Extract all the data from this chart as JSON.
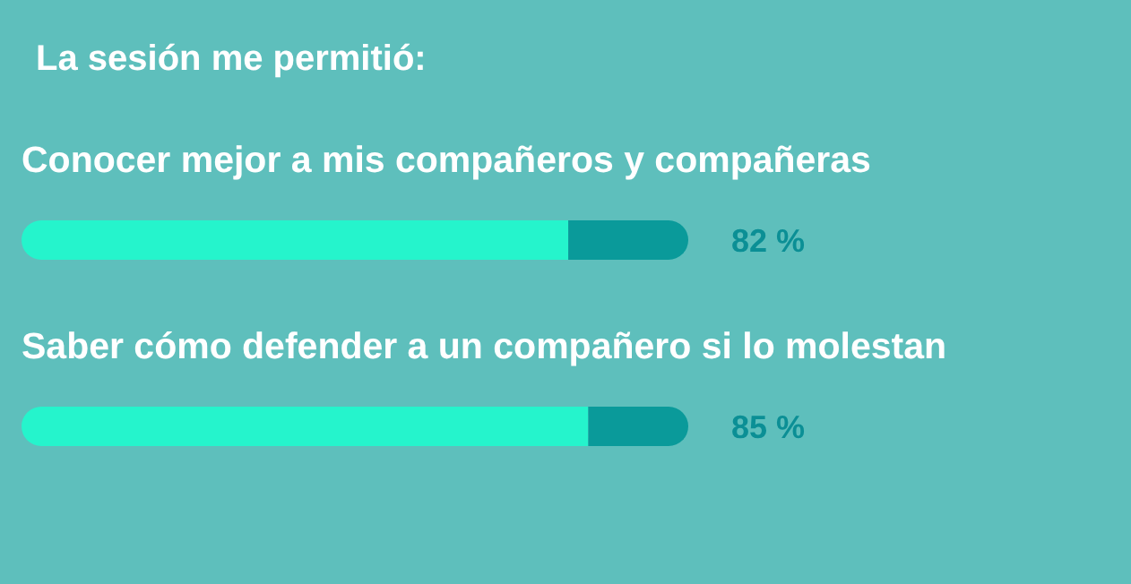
{
  "chart_data": {
    "type": "bar",
    "orientation": "horizontal",
    "stacked": true,
    "title": "La sesión me permitió:",
    "categories": [
      "Conocer mejor a mis compañeros y compañeras",
      "Saber cómo defender a un compañero si lo molestan"
    ],
    "series": [
      {
        "color": "#25f4cc",
        "values": [
          82,
          85
        ],
        "value_labels": [
          "82 %",
          "85 %"
        ]
      },
      {
        "color": "#0a9a9a",
        "values": [
          18,
          15
        ]
      }
    ],
    "xlim": [
      0,
      100
    ],
    "grid": false,
    "legend": false,
    "tick_labels": "y"
  }
}
